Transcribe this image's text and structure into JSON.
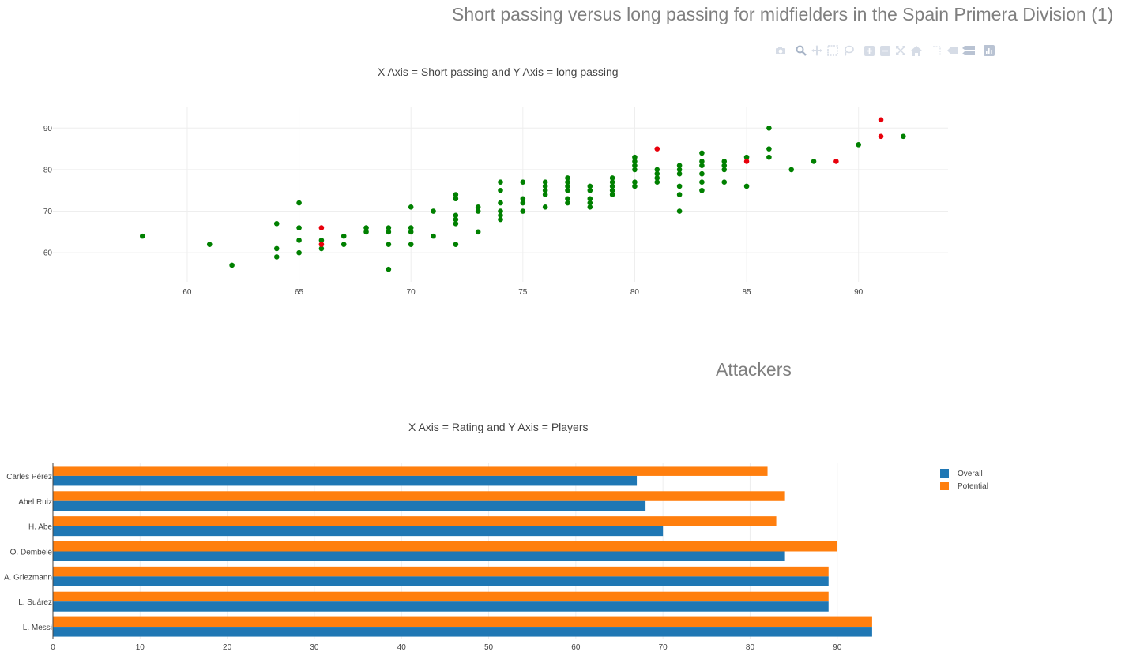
{
  "figure1": {
    "title": "Short passing versus long passing for midfielders in the Spain Primera Division (1)",
    "subtitle": "X Axis = Short passing and Y Axis = long passing"
  },
  "figure2": {
    "title": "Attackers",
    "subtitle": "X Axis = Rating and Y Axis = Players"
  },
  "modebar": [
    "camera-icon",
    "zoom-icon",
    "pan-icon",
    "box-select-icon",
    "lasso-select-icon",
    "zoom-in-icon",
    "zoom-out-icon",
    "autoscale-icon",
    "reset-axes-icon",
    "spike-lines-icon",
    "hover-closest-icon",
    "hover-compare-icon",
    "plotly-logo-icon"
  ],
  "colors": {
    "green": "#008000",
    "red": "#e8000b",
    "overall": "#1f77b4",
    "potential": "#ff7f0e",
    "grid": "#eeeeee",
    "title": "#7f7f7f"
  },
  "chart_data": [
    {
      "type": "scatter",
      "title": "Short passing versus long passing for midfielders in the Spain Primera Division (1)",
      "subtitle": "X Axis = Short passing and Y Axis = long passing",
      "xlim": [
        54,
        94
      ],
      "ylim": [
        53,
        95
      ],
      "xticks": [
        60,
        65,
        70,
        75,
        80,
        85,
        90
      ],
      "yticks": [
        60,
        70,
        80,
        90
      ],
      "grid": true,
      "series": [
        {
          "color": "green",
          "points": [
            [
              58,
              64
            ],
            [
              61,
              62
            ],
            [
              62,
              57
            ],
            [
              64,
              67
            ],
            [
              64,
              61
            ],
            [
              64,
              59
            ],
            [
              65,
              72
            ],
            [
              65,
              66
            ],
            [
              65,
              63
            ],
            [
              65,
              60
            ],
            [
              66,
              63
            ],
            [
              66,
              61
            ],
            [
              67,
              64
            ],
            [
              67,
              62
            ],
            [
              68,
              66
            ],
            [
              68,
              65
            ],
            [
              69,
              66
            ],
            [
              69,
              65
            ],
            [
              69,
              62
            ],
            [
              69,
              56
            ],
            [
              70,
              71
            ],
            [
              70,
              66
            ],
            [
              70,
              65
            ],
            [
              70,
              62
            ],
            [
              71,
              70
            ],
            [
              71,
              64
            ],
            [
              72,
              74
            ],
            [
              72,
              73
            ],
            [
              72,
              69
            ],
            [
              72,
              68
            ],
            [
              72,
              67
            ],
            [
              72,
              62
            ],
            [
              73,
              71
            ],
            [
              73,
              70
            ],
            [
              73,
              65
            ],
            [
              74,
              77
            ],
            [
              74,
              75
            ],
            [
              74,
              72
            ],
            [
              74,
              70
            ],
            [
              74,
              69
            ],
            [
              74,
              68
            ],
            [
              75,
              77
            ],
            [
              75,
              73
            ],
            [
              75,
              72
            ],
            [
              75,
              70
            ],
            [
              76,
              77
            ],
            [
              76,
              76
            ],
            [
              76,
              75
            ],
            [
              76,
              74
            ],
            [
              76,
              71
            ],
            [
              77,
              78
            ],
            [
              77,
              77
            ],
            [
              77,
              76
            ],
            [
              77,
              75
            ],
            [
              77,
              73
            ],
            [
              77,
              72
            ],
            [
              78,
              76
            ],
            [
              78,
              75
            ],
            [
              78,
              73
            ],
            [
              78,
              72
            ],
            [
              78,
              71
            ],
            [
              79,
              78
            ],
            [
              79,
              77
            ],
            [
              79,
              76
            ],
            [
              79,
              75
            ],
            [
              79,
              74
            ],
            [
              80,
              83
            ],
            [
              80,
              82
            ],
            [
              80,
              81
            ],
            [
              80,
              80
            ],
            [
              80,
              77
            ],
            [
              80,
              76
            ],
            [
              81,
              80
            ],
            [
              81,
              79
            ],
            [
              81,
              78
            ],
            [
              81,
              77
            ],
            [
              82,
              81
            ],
            [
              82,
              80
            ],
            [
              82,
              79
            ],
            [
              82,
              76
            ],
            [
              82,
              74
            ],
            [
              82,
              70
            ],
            [
              83,
              84
            ],
            [
              83,
              82
            ],
            [
              83,
              81
            ],
            [
              83,
              79
            ],
            [
              83,
              77
            ],
            [
              83,
              75
            ],
            [
              84,
              82
            ],
            [
              84,
              81
            ],
            [
              84,
              80
            ],
            [
              84,
              77
            ],
            [
              85,
              83
            ],
            [
              85,
              76
            ],
            [
              86,
              90
            ],
            [
              86,
              85
            ],
            [
              86,
              83
            ],
            [
              87,
              80
            ],
            [
              88,
              82
            ],
            [
              90,
              86
            ],
            [
              92,
              88
            ]
          ]
        },
        {
          "color": "red",
          "points": [
            [
              66,
              66
            ],
            [
              66,
              62
            ],
            [
              81,
              85
            ],
            [
              85,
              82
            ],
            [
              89,
              82
            ],
            [
              91,
              92
            ],
            [
              91,
              88
            ]
          ]
        }
      ]
    },
    {
      "type": "bar",
      "orientation": "horizontal",
      "title": "Attackers",
      "subtitle": "X Axis = Rating and Y Axis = Players",
      "categories": [
        "L. Messi",
        "L. Suárez",
        "A. Griezmann",
        "O. Dembélé",
        "H. Abe",
        "Abel Ruiz",
        "Carles Pérez"
      ],
      "xlim": [
        0,
        97
      ],
      "xticks": [
        0,
        10,
        20,
        30,
        40,
        50,
        60,
        70,
        80,
        90
      ],
      "grid": true,
      "legend_position": "top-right",
      "series": [
        {
          "name": "Overall",
          "color": "overall",
          "values": [
            94,
            89,
            89,
            84,
            70,
            68,
            67
          ]
        },
        {
          "name": "Potential",
          "color": "potential",
          "values": [
            94,
            89,
            89,
            90,
            83,
            84,
            82
          ]
        }
      ]
    }
  ]
}
